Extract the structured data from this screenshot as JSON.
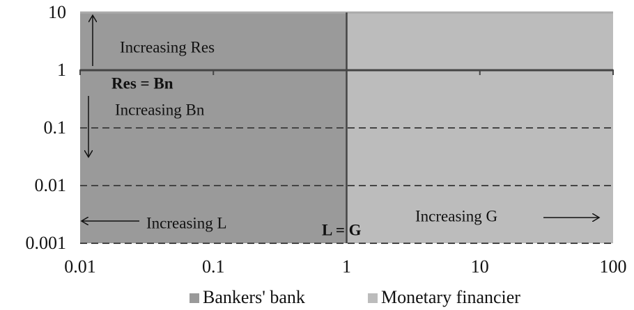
{
  "chart_data": {
    "type": "area",
    "series": [
      {
        "name": "Bankers' bank",
        "color": "#9a9a9a",
        "x": [
          0.01,
          1
        ],
        "values": [
          10,
          10
        ]
      },
      {
        "name": "Monetary financier",
        "color": "#bcbcbc",
        "x": [
          1,
          100
        ],
        "values": [
          10,
          10
        ]
      }
    ],
    "xlim": [
      0.01,
      100
    ],
    "xticks": [
      0.01,
      0.1,
      1,
      10,
      100
    ],
    "ylim": [
      0.001,
      10
    ],
    "yticks": [
      0.001,
      0.01,
      0.1,
      1,
      10
    ],
    "log_x": true,
    "log_y": true,
    "grid": true,
    "hline": 1,
    "vline": 1,
    "annotations": [
      "Increasing Res",
      "Res = Bn",
      "Increasing Bn",
      "Increasing L",
      "L = G",
      "Increasing G"
    ],
    "legend": "bottom"
  }
}
